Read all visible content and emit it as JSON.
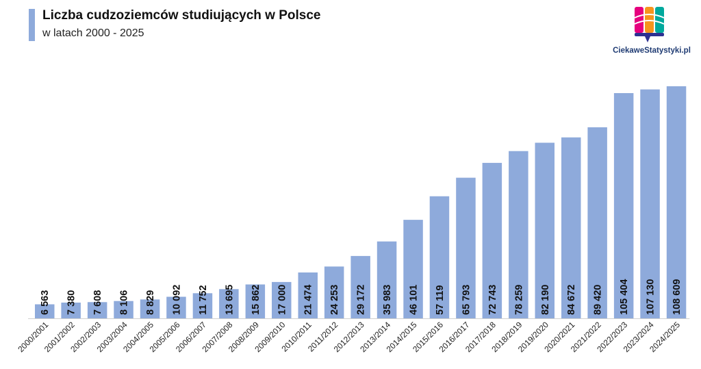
{
  "header": {
    "title": "Liczba cudzoziemców studiujących w Polsce",
    "subtitle": "w latach 2000 - 2025"
  },
  "logo": {
    "text": "CiekaweStatystyki.pl",
    "colors": [
      "#e6007e",
      "#f7941d",
      "#00a99d",
      "#2e3192"
    ]
  },
  "colors": {
    "bar": "#8eaadb",
    "label": "#111111",
    "axis": "#d0d0d0"
  },
  "chart_data": {
    "type": "bar",
    "title": "Liczba cudzoziemców studiujących w Polsce",
    "subtitle": "w latach 2000 - 2025",
    "categories": [
      "2000/2001",
      "2001/2002",
      "2002/2003",
      "2003/2004",
      "2004/2005",
      "2005/2006",
      "2006/2007",
      "2007/2008",
      "2008/2009",
      "2009/2010",
      "2010/2011",
      "2011/2012",
      "2012/2013",
      "2013/2014",
      "2014/2015",
      "2015/2016",
      "2016/2017",
      "2017/2018",
      "2018/2019",
      "2019/2020",
      "2020/2021",
      "2021/2022",
      "2022/2023",
      "2023/2024",
      "2024/2025"
    ],
    "values": [
      6563,
      7380,
      7608,
      8106,
      8829,
      10092,
      11752,
      13695,
      15862,
      17000,
      21474,
      24253,
      29172,
      35983,
      46101,
      57119,
      65793,
      72743,
      78259,
      82190,
      84672,
      89420,
      105404,
      107130,
      108609
    ],
    "value_labels": [
      "6 563",
      "7 380",
      "7 608",
      "8 106",
      "8 829",
      "10 092",
      "11 752",
      "13 695",
      "15 862",
      "17 000",
      "21 474",
      "24 253",
      "29 172",
      "35 983",
      "46 101",
      "57 119",
      "65 793",
      "72 743",
      "78 259",
      "82 190",
      "84 672",
      "89 420",
      "105 404",
      "107 130",
      "108 609"
    ],
    "xlabel": "",
    "ylabel": "",
    "ylim": [
      0,
      108609
    ],
    "grid": false,
    "legend": "none"
  }
}
